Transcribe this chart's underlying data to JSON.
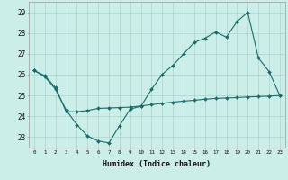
{
  "xlabel": "Humidex (Indice chaleur)",
  "background_color": "#cceee8",
  "grid_color": "#aad4ce",
  "line_color": "#1a6b6b",
  "xlim": [
    -0.5,
    23.5
  ],
  "ylim": [
    22.5,
    29.5
  ],
  "xticks": [
    0,
    1,
    2,
    3,
    4,
    5,
    6,
    7,
    8,
    9,
    10,
    11,
    12,
    13,
    14,
    15,
    16,
    17,
    18,
    19,
    20,
    21,
    22,
    23
  ],
  "yticks": [
    23,
    24,
    25,
    26,
    27,
    28,
    29
  ],
  "line1_x": [
    0,
    1,
    2,
    3,
    4,
    5,
    6,
    7,
    8,
    9,
    10,
    11,
    12,
    13,
    14,
    15,
    16,
    17,
    18,
    19,
    20,
    21,
    22,
    23
  ],
  "line1_y": [
    26.2,
    25.9,
    25.3,
    24.3,
    23.6,
    23.05,
    22.82,
    22.72,
    23.55,
    24.35,
    24.48,
    25.3,
    26.02,
    26.45,
    27.0,
    27.55,
    27.75,
    28.05,
    27.8,
    28.55,
    29.0,
    26.8,
    26.15,
    25.0
  ],
  "line2_x": [
    0,
    1,
    2,
    3,
    4,
    5,
    6,
    7,
    8,
    9,
    10,
    11,
    12,
    13,
    14,
    15,
    16,
    17,
    18,
    19,
    20,
    21,
    22,
    23
  ],
  "line2_y": [
    26.2,
    25.95,
    25.38,
    24.22,
    24.22,
    24.28,
    24.38,
    24.4,
    24.42,
    24.44,
    24.5,
    24.56,
    24.62,
    24.68,
    24.73,
    24.77,
    24.82,
    24.86,
    24.88,
    24.9,
    24.93,
    24.95,
    24.97,
    25.0
  ]
}
